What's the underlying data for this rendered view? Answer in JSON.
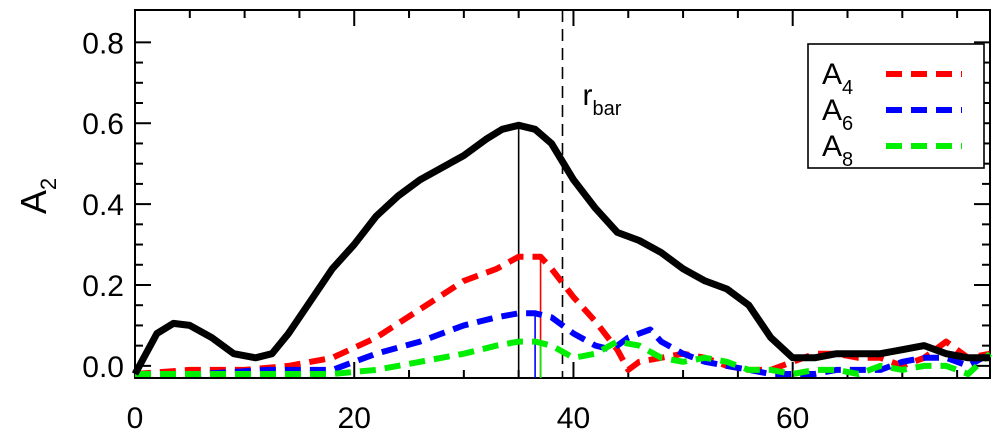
{
  "chart_data": {
    "type": "line",
    "title": "",
    "xlabel": "",
    "ylabel": "A",
    "ylabel_subscript": "2",
    "xlim": [
      0,
      78
    ],
    "ylim": [
      -0.03,
      0.88
    ],
    "xticks": [
      0,
      20,
      40,
      60
    ],
    "xtick_labels": [
      "0",
      "20",
      "40",
      "60"
    ],
    "yticks": [
      0.0,
      0.2,
      0.4,
      0.6,
      0.8
    ],
    "ytick_labels": [
      "0.0",
      "0.2",
      "0.4",
      "0.6",
      "0.8"
    ],
    "grid": false,
    "legend_position": "top-right",
    "series": [
      {
        "key": "a2",
        "color": "#000000",
        "style": "solid",
        "x": [
          0,
          2,
          3.5,
          5,
          7,
          9,
          11,
          12.5,
          14,
          16,
          18,
          20,
          22,
          24,
          26,
          28,
          30,
          32,
          33.5,
          35,
          36.5,
          38,
          40,
          42,
          44,
          46,
          48,
          50,
          52,
          54,
          56,
          58,
          60,
          62,
          64,
          66,
          68,
          70,
          72,
          74,
          76,
          78
        ],
        "values": [
          -0.02,
          0.08,
          0.105,
          0.1,
          0.07,
          0.03,
          0.02,
          0.03,
          0.08,
          0.16,
          0.24,
          0.3,
          0.37,
          0.42,
          0.46,
          0.49,
          0.52,
          0.56,
          0.585,
          0.595,
          0.585,
          0.55,
          0.46,
          0.39,
          0.33,
          0.31,
          0.28,
          0.24,
          0.21,
          0.19,
          0.15,
          0.07,
          0.02,
          0.02,
          0.03,
          0.03,
          0.03,
          0.04,
          0.05,
          0.03,
          0.02,
          0.02
        ]
      },
      {
        "key": "a4",
        "name": "A",
        "subscript": "4",
        "color": "#ff0000",
        "style": "dashed",
        "x": [
          0,
          5,
          10,
          14,
          18,
          22,
          26,
          30,
          33,
          35,
          36,
          37,
          38,
          40,
          42,
          44,
          45,
          46,
          48,
          50,
          52,
          54,
          56,
          58,
          60,
          62,
          64,
          66,
          68,
          70,
          72,
          74,
          76,
          78
        ],
        "values": [
          -0.02,
          -0.01,
          -0.01,
          0.0,
          0.02,
          0.07,
          0.14,
          0.21,
          0.24,
          0.27,
          0.27,
          0.27,
          0.24,
          0.17,
          0.11,
          0.04,
          -0.01,
          0.01,
          0.02,
          0.03,
          0.02,
          0.0,
          -0.01,
          -0.01,
          0.01,
          0.03,
          0.03,
          0.02,
          0.02,
          0.0,
          0.02,
          0.06,
          0.02,
          0.03
        ]
      },
      {
        "key": "a6",
        "name": "A",
        "subscript": "6",
        "color": "#0000ff",
        "style": "dashed",
        "x": [
          0,
          6,
          12,
          18,
          22,
          26,
          30,
          33,
          35,
          36.5,
          38,
          40,
          42,
          43.5,
          45,
          47,
          48,
          50,
          52,
          54,
          56,
          58,
          60,
          62,
          64,
          66,
          68,
          70,
          72,
          74,
          76,
          78
        ],
        "values": [
          -0.02,
          -0.02,
          -0.01,
          -0.01,
          0.03,
          0.06,
          0.1,
          0.12,
          0.13,
          0.13,
          0.12,
          0.08,
          0.05,
          0.04,
          0.07,
          0.09,
          0.06,
          0.03,
          0.01,
          0.0,
          -0.01,
          -0.02,
          -0.02,
          -0.02,
          -0.01,
          -0.01,
          -0.01,
          0.01,
          0.02,
          0.02,
          0.0,
          0.03
        ]
      },
      {
        "key": "a8",
        "name": "A",
        "subscript": "8",
        "color": "#00ee00",
        "style": "dashed",
        "x": [
          0,
          6,
          12,
          18,
          22,
          26,
          30,
          33,
          35,
          36.5,
          38,
          40,
          42,
          44,
          46,
          48,
          50,
          52,
          54,
          56,
          58,
          60,
          62,
          64,
          66,
          68,
          70,
          72,
          74,
          76,
          78
        ],
        "values": [
          -0.02,
          -0.02,
          -0.02,
          -0.02,
          -0.01,
          0.01,
          0.03,
          0.05,
          0.06,
          0.06,
          0.05,
          0.02,
          0.03,
          0.06,
          0.05,
          0.02,
          0.01,
          0.02,
          0.01,
          -0.01,
          -0.01,
          -0.02,
          -0.01,
          -0.01,
          -0.02,
          0.0,
          -0.01,
          0.0,
          0.0,
          -0.02,
          0.03
        ]
      }
    ],
    "markers": [
      {
        "key": "a2_peak",
        "x": 35,
        "value": 0.595,
        "color": "#000000"
      },
      {
        "key": "a4_peak",
        "x": 37,
        "value": 0.27,
        "color": "#ff0000"
      },
      {
        "key": "a6_peak",
        "x": 36.5,
        "value": 0.13,
        "color": "#0000ff"
      },
      {
        "key": "a8_peak",
        "x": 37,
        "value": 0.06,
        "color": "#00ee00"
      }
    ],
    "annotation": {
      "label": "r",
      "subscript": "bar",
      "x": 39,
      "color": "#000000",
      "style": "dashed"
    }
  }
}
